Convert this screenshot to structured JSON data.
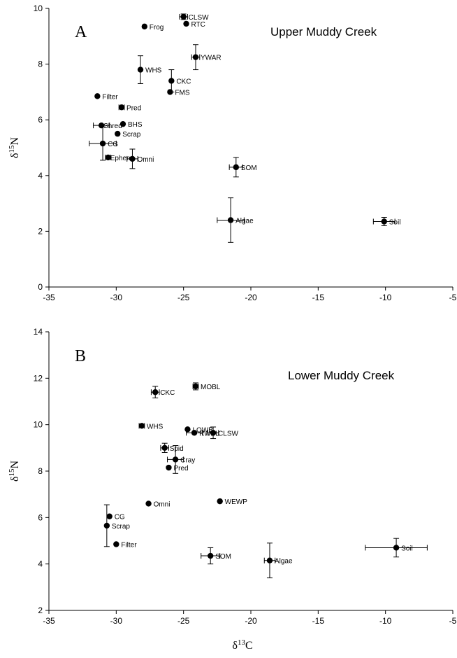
{
  "chart_data": [
    {
      "type": "scatter",
      "panel": "A",
      "title": "Upper Muddy Creek",
      "xlabel": "",
      "ylabel": "δ15N",
      "xlim": [
        -35,
        -5
      ],
      "ylim": [
        0,
        10
      ],
      "xticks": [
        -35,
        -30,
        -25,
        -20,
        -15,
        -10,
        -5
      ],
      "yticks": [
        0,
        2,
        4,
        6,
        8,
        10
      ],
      "grid": false,
      "points": [
        {
          "label": "CLSW",
          "x": -25.0,
          "y": 9.7,
          "xerr": 0.3,
          "yerr": 0.1
        },
        {
          "label": "Frog",
          "x": -27.9,
          "y": 9.35
        },
        {
          "label": "RTC",
          "x": -24.8,
          "y": 9.45
        },
        {
          "label": "YWAR",
          "x": -24.1,
          "y": 8.25,
          "xerr": 0.3,
          "yerr": 0.45
        },
        {
          "label": "WHS",
          "x": -28.2,
          "y": 7.8,
          "yerr": 0.5
        },
        {
          "label": "CKC",
          "x": -25.9,
          "y": 7.4,
          "yerr": 0.4
        },
        {
          "label": "FMS",
          "x": -26.0,
          "y": 7.0
        },
        {
          "label": "Filter",
          "x": -31.4,
          "y": 6.85
        },
        {
          "label": "Pred",
          "x": -29.6,
          "y": 6.45,
          "xerr": 0.2
        },
        {
          "label": "BHS",
          "x": -29.5,
          "y": 5.85
        },
        {
          "label": "Shred",
          "x": -31.1,
          "y": 5.8,
          "xerr": 0.6
        },
        {
          "label": "Scrap",
          "x": -29.9,
          "y": 5.5
        },
        {
          "label": "CG",
          "x": -31.0,
          "y": 5.15,
          "xerr": 1.0,
          "yerr": 0.6
        },
        {
          "label": "Ephem",
          "x": -30.6,
          "y": 4.65,
          "xerr": 0.2
        },
        {
          "label": "Omni",
          "x": -28.8,
          "y": 4.6,
          "xerr": 0.4,
          "yerr": 0.35
        },
        {
          "label": "SOM",
          "x": -21.1,
          "y": 4.3,
          "xerr": 0.5,
          "yerr": 0.35
        },
        {
          "label": "Algae",
          "x": -21.5,
          "y": 2.4,
          "xerr": 1.0,
          "yerr": 0.8
        },
        {
          "label": "Soil",
          "x": -10.1,
          "y": 2.35,
          "xerr": 0.8,
          "yerr": 0.15
        }
      ]
    },
    {
      "type": "scatter",
      "panel": "B",
      "title": "Lower Muddy Creek",
      "xlabel": "δ13C",
      "ylabel": "δ15N",
      "xlim": [
        -35,
        -5
      ],
      "ylim": [
        2,
        14
      ],
      "xticks": [
        -35,
        -30,
        -25,
        -20,
        -15,
        -10,
        -5
      ],
      "yticks": [
        2,
        4,
        6,
        8,
        10,
        12,
        14
      ],
      "grid": false,
      "points": [
        {
          "label": "MOBL",
          "x": -24.1,
          "y": 11.65,
          "xerr": 0.2,
          "yerr": 0.15
        },
        {
          "label": "CKC",
          "x": -27.1,
          "y": 11.4,
          "xerr": 0.3,
          "yerr": 0.25
        },
        {
          "label": "WHS",
          "x": -28.1,
          "y": 9.95,
          "xerr": 0.2
        },
        {
          "label": "LOWB",
          "x": -24.7,
          "y": 9.8
        },
        {
          "label": "CLSW",
          "x": -22.8,
          "y": 9.65,
          "xerr": 0.4,
          "yerr": 0.25
        },
        {
          "label": "RWBL",
          "x": -24.2,
          "y": 9.65,
          "xerr": 0.6
        },
        {
          "label": "Spid",
          "x": -26.4,
          "y": 9.0,
          "xerr": 0.3,
          "yerr": 0.2
        },
        {
          "label": "Cray",
          "x": -25.6,
          "y": 8.5,
          "xerr": 0.6,
          "yerr": 0.6
        },
        {
          "label": "Pred",
          "x": -26.1,
          "y": 8.15
        },
        {
          "label": "WEWP",
          "x": -22.3,
          "y": 6.7
        },
        {
          "label": "Omni",
          "x": -27.6,
          "y": 6.6
        },
        {
          "label": "CG",
          "x": -30.5,
          "y": 6.05
        },
        {
          "label": "Scrap",
          "x": -30.7,
          "y": 5.65,
          "yerr": 0.9
        },
        {
          "label": "Filter",
          "x": -30.0,
          "y": 4.85
        },
        {
          "label": "Soil",
          "x": -9.2,
          "y": 4.7,
          "xerr": 2.3,
          "yerr": 0.4
        },
        {
          "label": "SOM",
          "x": -23.0,
          "y": 4.35,
          "xerr": 0.7,
          "yerr": 0.35
        },
        {
          "label": "Algae",
          "x": -18.6,
          "y": 4.15,
          "xerr": 0.4,
          "yerr": 0.75
        }
      ]
    }
  ]
}
